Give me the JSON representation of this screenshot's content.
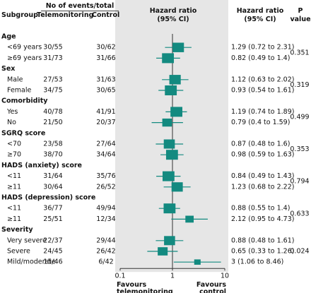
{
  "chart_data": {
    "type": "forest",
    "columns": {
      "subgroup": "Subgroup",
      "events": "No of events/total",
      "telemonitoring": "Telemonitoring",
      "control": "Control",
      "plot": "Hazard ratio (95% CI)",
      "hr": "Hazard ratio (95% CI)",
      "p": "P value"
    },
    "xlog": true,
    "xlim": [
      0.1,
      10
    ],
    "xticks": [
      0.1,
      1,
      10
    ],
    "reference_line": 1,
    "x_label_left": "Favours telemonitoring",
    "x_label_right": "Favours control",
    "color": "#138a80",
    "panel_color": "#e6e6e6",
    "groups": [
      {
        "name": "Age",
        "p": 0.351,
        "rows": [
          {
            "label": "<69 years",
            "telemonitoring": "30/55",
            "control": "30/62",
            "hr": 1.29,
            "lo": 0.72,
            "hi": 2.31,
            "hr_label": "1.29 (0.72 to 2.31)"
          },
          {
            "label": "≥69 years",
            "telemonitoring": "31/73",
            "control": "31/66",
            "hr": 0.82,
            "lo": 0.49,
            "hi": 1.4,
            "hr_label": "0.82 (0.49 to 1.4)"
          }
        ]
      },
      {
        "name": "Sex",
        "p": 0.319,
        "rows": [
          {
            "label": "Male",
            "telemonitoring": "27/53",
            "control": "31/63",
            "hr": 1.12,
            "lo": 0.63,
            "hi": 2.02,
            "hr_label": "1.12 (0.63 to 2.02)"
          },
          {
            "label": "Female",
            "telemonitoring": "34/75",
            "control": "30/65",
            "hr": 0.93,
            "lo": 0.54,
            "hi": 1.61,
            "hr_label": "0.93 (0.54 to 1.61)"
          }
        ]
      },
      {
        "name": "Comorbidity",
        "p": 0.499,
        "rows": [
          {
            "label": "Yes",
            "telemonitoring": "40/78",
            "control": "41/91",
            "hr": 1.19,
            "lo": 0.74,
            "hi": 1.89,
            "hr_label": "1.19 (0.74 to 1.89)"
          },
          {
            "label": "No",
            "telemonitoring": "21/50",
            "control": "20/37",
            "hr": 0.79,
            "lo": 0.4,
            "hi": 1.59,
            "hr_label": "0.79 (0.4 to 1.59)"
          }
        ]
      },
      {
        "name": "SGRQ score",
        "p": 0.353,
        "rows": [
          {
            "label": "<70",
            "telemonitoring": "23/58",
            "control": "27/64",
            "hr": 0.87,
            "lo": 0.48,
            "hi": 1.6,
            "hr_label": "0.87 (0.48 to 1.6)"
          },
          {
            "label": "≥70",
            "telemonitoring": "38/70",
            "control": "34/64",
            "hr": 0.98,
            "lo": 0.59,
            "hi": 1.63,
            "hr_label": "0.98 (0.59 to 1.63)"
          }
        ]
      },
      {
        "name": "HADS (anxiety) score",
        "p": 0.794,
        "rows": [
          {
            "label": "<11",
            "telemonitoring": "31/64",
            "control": "35/76",
            "hr": 0.84,
            "lo": 0.49,
            "hi": 1.43,
            "hr_label": "0.84 (0.49 to 1.43)"
          },
          {
            "label": "≥11",
            "telemonitoring": "30/64",
            "control": "26/52",
            "hr": 1.23,
            "lo": 0.68,
            "hi": 2.22,
            "hr_label": "1.23 (0.68 to 2.22)"
          }
        ]
      },
      {
        "name": "HADS (depression) score",
        "p": 0.633,
        "rows": [
          {
            "label": "<11",
            "telemonitoring": "36/77",
            "control": "49/94",
            "hr": 0.88,
            "lo": 0.55,
            "hi": 1.4,
            "hr_label": "0.88 (0.55 to 1.4)"
          },
          {
            "label": "≥11",
            "telemonitoring": "25/51",
            "control": "12/34",
            "hr": 2.12,
            "lo": 0.95,
            "hi": 4.73,
            "hr_label": "2.12 (0.95 to 4.73)"
          }
        ]
      },
      {
        "name": "Severity",
        "p": 0.024,
        "rows": [
          {
            "label": "Very severe",
            "telemonitoring": "22/37",
            "control": "29/44",
            "hr": 0.88,
            "lo": 0.48,
            "hi": 1.61,
            "hr_label": "0.88 (0.48 to 1.61)"
          },
          {
            "label": "Severe",
            "telemonitoring": "24/45",
            "control": "26/42",
            "hr": 0.65,
            "lo": 0.33,
            "hi": 1.26,
            "hr_label": "0.65 (0.33 to 1.26)"
          },
          {
            "label": "Mild/moderate",
            "telemonitoring": "15/46",
            "control": "6/42",
            "hr": 3,
            "lo": 1.06,
            "hi": 8.46,
            "hr_label": "3 (1.06 to 8.46)"
          }
        ]
      }
    ]
  }
}
